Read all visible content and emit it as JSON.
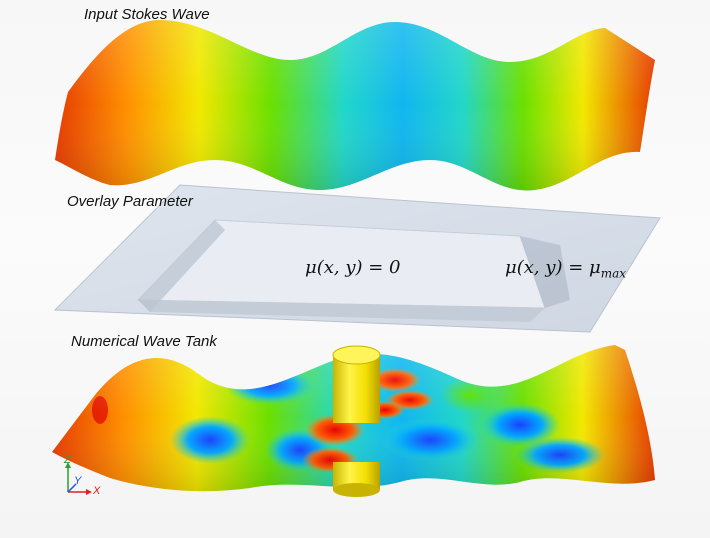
{
  "labels": {
    "top": "Input Stokes Wave",
    "middle": "Overlay Parameter",
    "bottom": "Numerical Wave Tank"
  },
  "equations": {
    "left": "μ(x, y) = 0",
    "right": "μ(x, y) = μ"
  },
  "equation_right_subscript": "max",
  "axes": {
    "z": "Z",
    "y": "Y",
    "x": "X"
  },
  "colors": {
    "overlay_plane": "#d6dde8",
    "cylinder": "#f0e000",
    "colormap": [
      "#1a3cff",
      "#00b7ff",
      "#27e0b0",
      "#64e000",
      "#f2e800",
      "#ff9000",
      "#e83000"
    ]
  }
}
